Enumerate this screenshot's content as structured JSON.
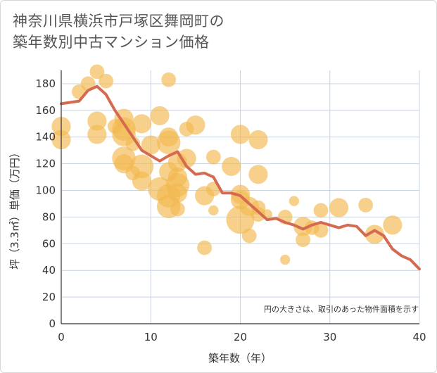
{
  "title_lines": [
    "神奈川県横浜市戸塚区舞岡町の",
    "築年数別中古マンション価格"
  ],
  "chart_data": {
    "type": "scatter",
    "title": "神奈川県横浜市戸塚区舞岡町の築年数別中古マンション価格",
    "xlabel": "築年数（年）",
    "ylabel": "坪（3.3㎡）単価（万円）",
    "xlim": [
      0,
      40
    ],
    "ylim": [
      0,
      190
    ],
    "x_ticks": [
      0,
      10,
      20,
      30,
      40
    ],
    "y_ticks": [
      0,
      20,
      40,
      60,
      80,
      100,
      120,
      140,
      160,
      180
    ],
    "grid": true,
    "note": "円の大きさは、取引のあった物件面積を示す",
    "colors": {
      "bubble": "#f3b94f",
      "line": "#d46a50",
      "grid": "#c9d4e3"
    },
    "bubbles": [
      {
        "x": 0,
        "y": 148,
        "size": 3
      },
      {
        "x": 0,
        "y": 138,
        "size": 3
      },
      {
        "x": 2,
        "y": 174,
        "size": 2
      },
      {
        "x": 3,
        "y": 180,
        "size": 2
      },
      {
        "x": 4,
        "y": 189,
        "size": 2
      },
      {
        "x": 4,
        "y": 152,
        "size": 3
      },
      {
        "x": 4,
        "y": 142,
        "size": 3
      },
      {
        "x": 5,
        "y": 182,
        "size": 2
      },
      {
        "x": 6,
        "y": 148,
        "size": 2
      },
      {
        "x": 7,
        "y": 154,
        "size": 3
      },
      {
        "x": 7,
        "y": 146,
        "size": 4
      },
      {
        "x": 7,
        "y": 142,
        "size": 4
      },
      {
        "x": 7,
        "y": 124,
        "size": 4
      },
      {
        "x": 7,
        "y": 120,
        "size": 3
      },
      {
        "x": 8,
        "y": 135,
        "size": 2
      },
      {
        "x": 8,
        "y": 113,
        "size": 2
      },
      {
        "x": 9,
        "y": 150,
        "size": 3
      },
      {
        "x": 9,
        "y": 118,
        "size": 4
      },
      {
        "x": 9,
        "y": 107,
        "size": 3
      },
      {
        "x": 10,
        "y": 134,
        "size": 3
      },
      {
        "x": 11,
        "y": 156,
        "size": 3
      },
      {
        "x": 11,
        "y": 101,
        "size": 4
      },
      {
        "x": 12,
        "y": 183,
        "size": 2
      },
      {
        "x": 12,
        "y": 140,
        "size": 3
      },
      {
        "x": 12,
        "y": 136,
        "size": 4
      },
      {
        "x": 12,
        "y": 114,
        "size": 3
      },
      {
        "x": 12,
        "y": 96,
        "size": 4
      },
      {
        "x": 12,
        "y": 88,
        "size": 4
      },
      {
        "x": 13,
        "y": 121,
        "size": 3
      },
      {
        "x": 13,
        "y": 110,
        "size": 3
      },
      {
        "x": 13,
        "y": 104,
        "size": 4
      },
      {
        "x": 13,
        "y": 98,
        "size": 3
      },
      {
        "x": 13,
        "y": 86,
        "size": 2
      },
      {
        "x": 14,
        "y": 146,
        "size": 2
      },
      {
        "x": 14,
        "y": 124,
        "size": 3
      },
      {
        "x": 15,
        "y": 149,
        "size": 3
      },
      {
        "x": 16,
        "y": 96,
        "size": 3
      },
      {
        "x": 16,
        "y": 57,
        "size": 2
      },
      {
        "x": 17,
        "y": 125,
        "size": 2
      },
      {
        "x": 17,
        "y": 101,
        "size": 2
      },
      {
        "x": 17,
        "y": 85,
        "size": 1
      },
      {
        "x": 19,
        "y": 118,
        "size": 3
      },
      {
        "x": 20,
        "y": 142,
        "size": 3
      },
      {
        "x": 20,
        "y": 97,
        "size": 3
      },
      {
        "x": 20,
        "y": 93,
        "size": 3
      },
      {
        "x": 20,
        "y": 78,
        "size": 5
      },
      {
        "x": 21,
        "y": 88,
        "size": 3
      },
      {
        "x": 21,
        "y": 66,
        "size": 2
      },
      {
        "x": 22,
        "y": 138,
        "size": 3
      },
      {
        "x": 22,
        "y": 112,
        "size": 3
      },
      {
        "x": 22,
        "y": 87,
        "size": 2
      },
      {
        "x": 22,
        "y": 82,
        "size": 2
      },
      {
        "x": 23,
        "y": 82,
        "size": 1
      },
      {
        "x": 25,
        "y": 80,
        "size": 2
      },
      {
        "x": 25,
        "y": 48,
        "size": 1
      },
      {
        "x": 26,
        "y": 92,
        "size": 1
      },
      {
        "x": 27,
        "y": 73,
        "size": 3
      },
      {
        "x": 27,
        "y": 63,
        "size": 2
      },
      {
        "x": 28,
        "y": 72,
        "size": 2
      },
      {
        "x": 29,
        "y": 85,
        "size": 2
      },
      {
        "x": 29,
        "y": 70,
        "size": 2
      },
      {
        "x": 31,
        "y": 87,
        "size": 3
      },
      {
        "x": 34,
        "y": 89,
        "size": 2
      },
      {
        "x": 35,
        "y": 67,
        "size": 3
      },
      {
        "x": 37,
        "y": 74,
        "size": 3
      }
    ],
    "trend": {
      "x": [
        0,
        1,
        2,
        3,
        4,
        5,
        6,
        7,
        8,
        9,
        10,
        11,
        12,
        13,
        14,
        15,
        16,
        17,
        18,
        19,
        20,
        21,
        22,
        23,
        24,
        25,
        26,
        27,
        28,
        29,
        30,
        31,
        32,
        33,
        34,
        35,
        36,
        37,
        38,
        39,
        40
      ],
      "y": [
        165,
        166,
        167,
        175,
        178,
        172,
        160,
        150,
        140,
        130,
        126,
        122,
        126,
        129,
        118,
        112,
        113,
        110,
        98,
        98,
        96,
        90,
        84,
        78,
        79,
        76,
        74,
        71,
        74,
        76,
        74,
        72,
        74,
        73,
        66,
        70,
        66,
        56,
        51,
        48,
        41
      ]
    }
  }
}
